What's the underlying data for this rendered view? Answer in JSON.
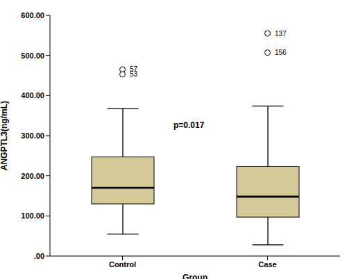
{
  "chart_data": {
    "type": "box",
    "x_label": "Group",
    "y_label": "ANGPTL3(ng/mL)",
    "categories": [
      "Control",
      "Case"
    ],
    "boxes": [
      {
        "min": 55,
        "q1": 130,
        "median": 170,
        "q3": 247,
        "max": 368,
        "outliers": [
          {
            "value": 465,
            "label": "57"
          },
          {
            "value": 453,
            "label": "53"
          }
        ]
      },
      {
        "min": 28,
        "q1": 97,
        "median": 148,
        "q3": 223,
        "max": 374,
        "outliers": [
          {
            "value": 555,
            "label": "137"
          },
          {
            "value": 507,
            "label": "156"
          }
        ]
      }
    ],
    "color": "#d3ca98",
    "ylim": [
      0,
      600
    ],
    "yticks": [
      {
        "value": 0,
        "label": ".00"
      },
      {
        "value": 100,
        "label": "100.00"
      },
      {
        "value": 200,
        "label": "200.00"
      },
      {
        "value": 300,
        "label": "300.00"
      },
      {
        "value": 400,
        "label": "400.00"
      },
      {
        "value": 500,
        "label": "500.00"
      },
      {
        "value": 600,
        "label": "600.00"
      }
    ],
    "annotations": [
      "p=0.017"
    ]
  }
}
